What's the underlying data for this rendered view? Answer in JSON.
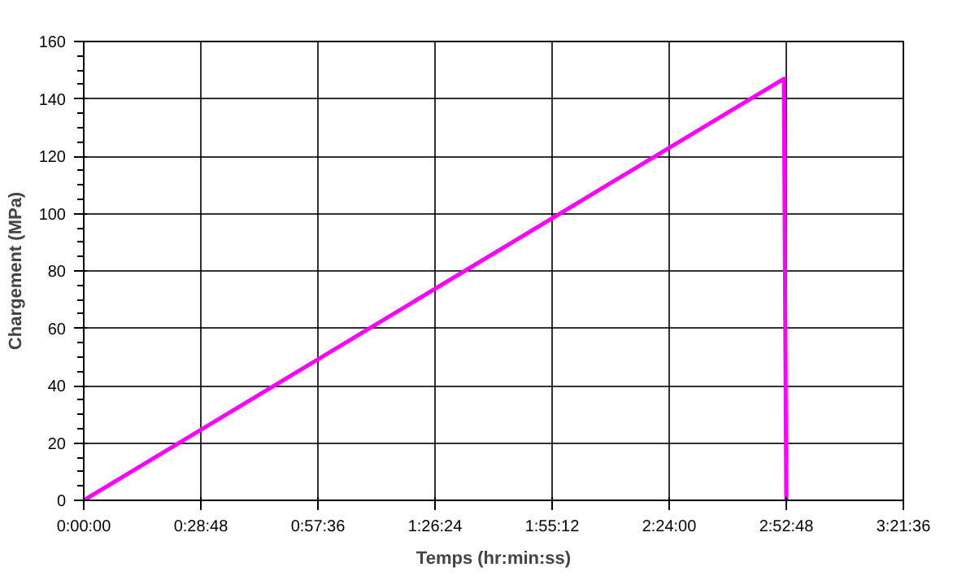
{
  "chart_data": {
    "type": "line",
    "xlabel": "Temps (hr:min:ss)",
    "ylabel": "Chargement (MPa)",
    "x": [
      0,
      2.87,
      2.88
    ],
    "series": [
      {
        "color": "#ff00ff",
        "values": [
          0,
          147,
          0
        ]
      }
    ],
    "xlim": [
      0,
      3.36
    ],
    "ylim": [
      0,
      160
    ],
    "xticks": [
      {
        "value": 0,
        "label": "0:00:00"
      },
      {
        "value": 0.48,
        "label": "0:28:48"
      },
      {
        "value": 0.96,
        "label": "0:57:36"
      },
      {
        "value": 1.44,
        "label": "1:26:24"
      },
      {
        "value": 1.92,
        "label": "1:55:12"
      },
      {
        "value": 2.4,
        "label": "2:24:00"
      },
      {
        "value": 2.88,
        "label": "2:52:48"
      },
      {
        "value": 3.36,
        "label": "3:21:36"
      }
    ],
    "yticks": [
      0,
      20,
      40,
      60,
      80,
      100,
      120,
      140,
      160
    ],
    "grid": true,
    "line_style": "solid",
    "marker": "none"
  }
}
